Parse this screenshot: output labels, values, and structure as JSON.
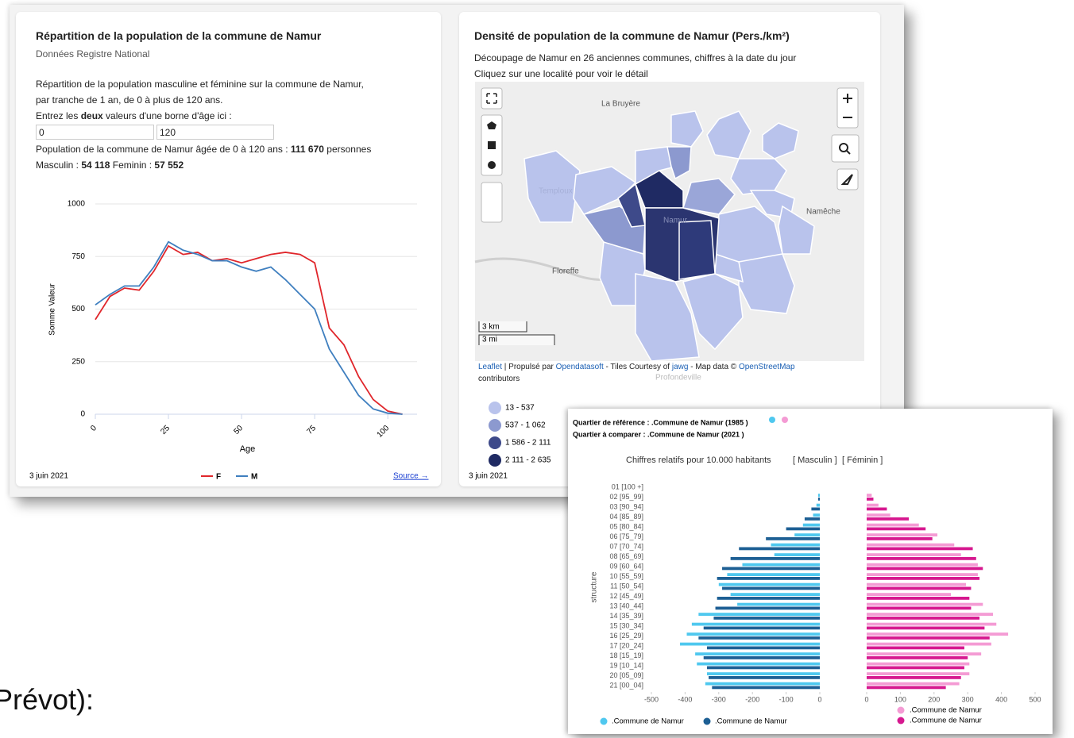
{
  "left_panel": {
    "title": "Répartition de la population de la commune de Namur",
    "subtitle": "Données Registre National",
    "description": [
      "Répartition de la population masculine et féminine sur la commune de Namur,",
      "par tranche de 1 an, de 0 à plus de 120 ans."
    ],
    "prompt": [
      "Entrez les ",
      "deux",
      " valeurs d'une borne d'âge ici :"
    ],
    "inputs": [
      "0",
      "120"
    ],
    "summary": [
      "Population de la commune de Namur âgée de 0 à 120 ans : ",
      "111 670",
      " personnes"
    ],
    "split": [
      "Masculin : ",
      "54 118",
      " Feminin : ",
      "57 552"
    ],
    "date": "3 juin 2021",
    "source": "Source →"
  },
  "right_panel": {
    "title": "Densité de population de la commune de Namur (Pers./km²)",
    "description": [
      "Découpage de Namur en 26 anciennes communes, chiffres à la date du jour",
      "Cliquez sur une localité pour voir le détail"
    ],
    "map_labels": [
      "La Bruyère",
      "Namur",
      "Floreffe",
      "Namêche",
      "Temploux",
      "Profondeville"
    ],
    "scale": [
      "3 km",
      "3 mi"
    ],
    "attribution": [
      "Leaflet",
      " | Propulsé par ",
      "Opendatasoft",
      " - Tiles Courtesy of ",
      "jawg",
      " - Map data © ",
      "OpenStreetMap",
      "contributors"
    ],
    "legend": [
      {
        "label": "13 - 537",
        "color": "#b9c3ec"
      },
      {
        "label": "537 - 1 062",
        "color": "#8c99cf"
      },
      {
        "label": "1 586 - 2 111",
        "color": "#3e4a8a"
      },
      {
        "label": "2 111 - 2 635",
        "color": "#1f2a63"
      }
    ],
    "date": "3 juin 2021"
  },
  "pyramid_header": [
    "Quartier de référence : .Commune de Namur (1985 )",
    "Quartier à comparer : .Commune de Namur (2021 )"
  ],
  "footer_text": "Prévot):",
  "chart_data": [
    {
      "type": "line",
      "x_label": "Age",
      "y_label": "Somme Valeur",
      "x": [
        0,
        5,
        10,
        15,
        20,
        25,
        30,
        35,
        40,
        45,
        50,
        55,
        60,
        65,
        70,
        75,
        80,
        85,
        90,
        95,
        100,
        105
      ],
      "series": [
        {
          "name": "F",
          "color": "#e0262b",
          "values": [
            450,
            560,
            600,
            590,
            680,
            800,
            760,
            770,
            730,
            740,
            720,
            740,
            760,
            770,
            760,
            720,
            410,
            330,
            180,
            70,
            15,
            0
          ]
        },
        {
          "name": "M",
          "color": "#3f7fbf",
          "values": [
            520,
            570,
            610,
            610,
            700,
            820,
            780,
            760,
            730,
            730,
            700,
            680,
            700,
            640,
            570,
            500,
            310,
            200,
            90,
            25,
            5,
            0
          ]
        }
      ],
      "xlim": [
        0,
        110
      ],
      "xticks": [
        0,
        25,
        50,
        75,
        100
      ],
      "ylim": [
        0,
        1000
      ],
      "yticks": [
        0,
        250,
        500,
        750,
        1000
      ],
      "grid": true
    },
    {
      "type": "pyramid",
      "title": "Chiffres relatifs pour 10.000 habitants",
      "side_labels": [
        "[ Masculin ]",
        "[ Féminin ]"
      ],
      "y_label": "structure",
      "categories": [
        "01 [100 +]",
        "02 [95_99]",
        "03 [90_94]",
        "04 [85_89]",
        "05 [80_84]",
        "06 [75_79]",
        "07 [70_74]",
        "08 [65_69]",
        "09 [60_64]",
        "10 [55_59]",
        "11 [50_54]",
        "12 [45_49]",
        "13 [40_44]",
        "14 [35_39]",
        "15 [30_34]",
        "16 [25_29]",
        "17 [20_24]",
        "18 [15_19]",
        "19 [10_14]",
        "20 [05_09]",
        "21 [00_04]"
      ],
      "series": [
        {
          "name": ".Commune de Namur",
          "color": "#4fc8ef",
          "values": [
            0,
            -5,
            -10,
            -20,
            -50,
            -75,
            -145,
            -135,
            -230,
            -275,
            -300,
            -265,
            -245,
            -360,
            -380,
            -395,
            -415,
            -370,
            -365,
            -335,
            -340
          ]
        },
        {
          "name": ".Commune de Namur",
          "color": "#1d5f94",
          "values": [
            0,
            -5,
            -25,
            -45,
            -100,
            -160,
            -240,
            -265,
            -290,
            -305,
            -290,
            -305,
            -310,
            -315,
            -345,
            -360,
            -335,
            -345,
            -335,
            -330,
            -320
          ]
        },
        {
          "name": ".Commune de Namur",
          "color": "#f49bd4",
          "axis": "x2",
          "values": [
            0,
            15,
            35,
            70,
            155,
            210,
            260,
            280,
            330,
            330,
            295,
            250,
            345,
            375,
            385,
            420,
            370,
            340,
            305,
            305,
            275
          ]
        },
        {
          "name": ".Commune de Namur",
          "color": "#d6188f",
          "axis": "x2",
          "values": [
            0,
            20,
            60,
            125,
            175,
            195,
            315,
            325,
            345,
            335,
            310,
            305,
            310,
            335,
            350,
            365,
            290,
            300,
            290,
            280,
            235
          ]
        }
      ],
      "xlim": [
        -500,
        0
      ],
      "xticks": [
        -500,
        -400,
        -300,
        -200,
        -100,
        0
      ],
      "x2lim": [
        0,
        500
      ],
      "x2ticks": [
        0,
        100,
        200,
        300,
        400,
        500
      ]
    }
  ]
}
